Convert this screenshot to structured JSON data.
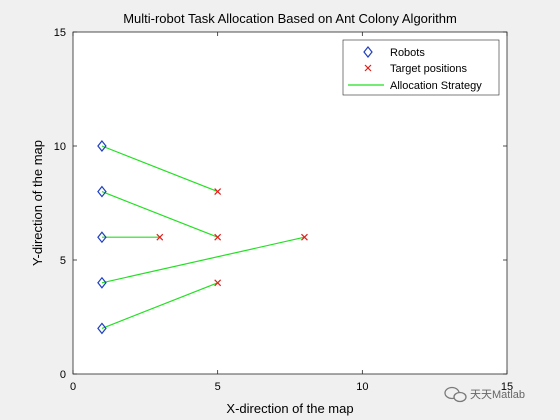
{
  "chart_data": {
    "type": "scatter",
    "title": "Multi-robot Task Allocation Based on Ant Colony Algorithm",
    "xlabel": "X-direction of the map",
    "ylabel": "Y-direction of the map",
    "xlim": [
      0,
      15
    ],
    "ylim": [
      0,
      15
    ],
    "xticks": [
      0,
      5,
      10,
      15
    ],
    "yticks": [
      0,
      5,
      10,
      15
    ],
    "grid": false,
    "legend_position": "top-right",
    "series": [
      {
        "name": "Robots",
        "marker": "diamond",
        "color": "#1f3fbf",
        "points": [
          [
            1,
            10
          ],
          [
            1,
            8
          ],
          [
            1,
            6
          ],
          [
            1,
            4
          ],
          [
            1,
            2
          ]
        ]
      },
      {
        "name": "Target positions",
        "marker": "x",
        "color": "#e0201c",
        "points": [
          [
            5,
            8
          ],
          [
            5,
            6
          ],
          [
            3,
            6
          ],
          [
            8,
            6
          ],
          [
            5,
            4
          ]
        ]
      },
      {
        "name": "Allocation Strategy",
        "marker": "line",
        "color": "#22e022",
        "segments": [
          [
            [
              1,
              10
            ],
            [
              5,
              8
            ]
          ],
          [
            [
              1,
              8
            ],
            [
              5,
              6
            ]
          ],
          [
            [
              1,
              6
            ],
            [
              3,
              6
            ]
          ],
          [
            [
              1,
              4
            ],
            [
              8,
              6
            ]
          ],
          [
            [
              1,
              2
            ],
            [
              5,
              4
            ]
          ]
        ]
      }
    ]
  },
  "watermark": {
    "text": "天天Matlab",
    "icon": "wechat-icon"
  }
}
